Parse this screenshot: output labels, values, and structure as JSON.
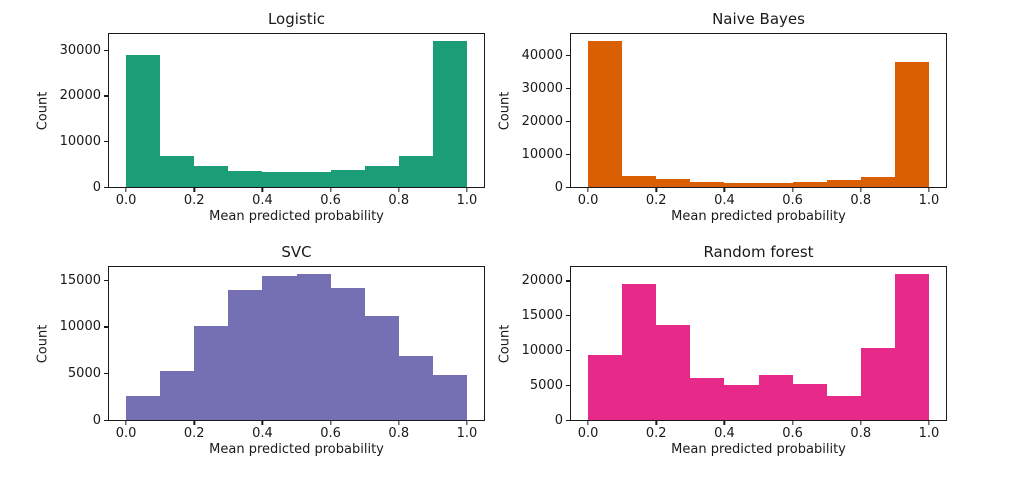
{
  "chart_data": [
    {
      "type": "bar",
      "title": "Logistic",
      "xlabel": "Mean predicted probability",
      "ylabel": "Count",
      "color": "#1b9e77",
      "bin_edges": [
        0.0,
        0.1,
        0.2,
        0.3,
        0.4,
        0.5,
        0.6,
        0.7,
        0.8,
        0.9,
        1.0
      ],
      "values": [
        29000,
        6900,
        4600,
        3600,
        3200,
        3200,
        3700,
        4600,
        6900,
        32000
      ],
      "xticks": [
        0.0,
        0.2,
        0.4,
        0.6,
        0.8,
        1.0
      ],
      "xtick_labels": [
        "0.0",
        "0.2",
        "0.4",
        "0.6",
        "0.8",
        "1.0"
      ],
      "yticks": [
        0,
        10000,
        20000,
        30000
      ],
      "ytick_labels": [
        "0",
        "10000",
        "20000",
        "30000"
      ],
      "xlim": [
        -0.05,
        1.05
      ],
      "ylim": [
        0,
        33600
      ],
      "grid": false,
      "legend": "none"
    },
    {
      "type": "bar",
      "title": "Naive Bayes",
      "xlabel": "Mean predicted probability",
      "ylabel": "Count",
      "color": "#d95f02",
      "bin_edges": [
        0.0,
        0.1,
        0.2,
        0.3,
        0.4,
        0.5,
        0.6,
        0.7,
        0.8,
        0.9,
        1.0
      ],
      "values": [
        44300,
        3200,
        2300,
        1600,
        1300,
        1300,
        1600,
        2000,
        3100,
        37800
      ],
      "xticks": [
        0.0,
        0.2,
        0.4,
        0.6,
        0.8,
        1.0
      ],
      "xtick_labels": [
        "0.0",
        "0.2",
        "0.4",
        "0.6",
        "0.8",
        "1.0"
      ],
      "yticks": [
        0,
        10000,
        20000,
        30000,
        40000
      ],
      "ytick_labels": [
        "0",
        "10000",
        "20000",
        "30000",
        "40000"
      ],
      "xlim": [
        -0.05,
        1.05
      ],
      "ylim": [
        0,
        46400
      ],
      "grid": false,
      "legend": "none"
    },
    {
      "type": "bar",
      "title": "SVC",
      "xlabel": "Mean predicted probability",
      "ylabel": "Count",
      "color": "#7570b3",
      "bin_edges": [
        0.0,
        0.1,
        0.2,
        0.3,
        0.4,
        0.5,
        0.6,
        0.7,
        0.8,
        0.9,
        1.0
      ],
      "values": [
        2600,
        5300,
        10100,
        13900,
        15400,
        15600,
        14100,
        11100,
        6900,
        4800
      ],
      "xticks": [
        0.0,
        0.2,
        0.4,
        0.6,
        0.8,
        1.0
      ],
      "xtick_labels": [
        "0.0",
        "0.2",
        "0.4",
        "0.6",
        "0.8",
        "1.0"
      ],
      "yticks": [
        0,
        5000,
        10000,
        15000
      ],
      "ytick_labels": [
        "0",
        "5000",
        "10000",
        "15000"
      ],
      "xlim": [
        -0.05,
        1.05
      ],
      "ylim": [
        0,
        16400
      ],
      "grid": false,
      "legend": "none"
    },
    {
      "type": "bar",
      "title": "Random forest",
      "xlabel": "Mean predicted probability",
      "ylabel": "Count",
      "color": "#e7298a",
      "bin_edges": [
        0.0,
        0.1,
        0.2,
        0.3,
        0.4,
        0.5,
        0.6,
        0.7,
        0.8,
        0.9,
        1.0
      ],
      "values": [
        9400,
        19600,
        13600,
        6000,
        5100,
        6400,
        5200,
        3500,
        10400,
        21000
      ],
      "xticks": [
        0.0,
        0.2,
        0.4,
        0.6,
        0.8,
        1.0
      ],
      "xtick_labels": [
        "0.0",
        "0.2",
        "0.4",
        "0.6",
        "0.8",
        "1.0"
      ],
      "yticks": [
        0,
        5000,
        10000,
        15000,
        20000
      ],
      "ytick_labels": [
        "0",
        "5000",
        "10000",
        "15000",
        "20000"
      ],
      "xlim": [
        -0.05,
        1.05
      ],
      "ylim": [
        0,
        22000
      ],
      "grid": false,
      "legend": "none"
    }
  ]
}
